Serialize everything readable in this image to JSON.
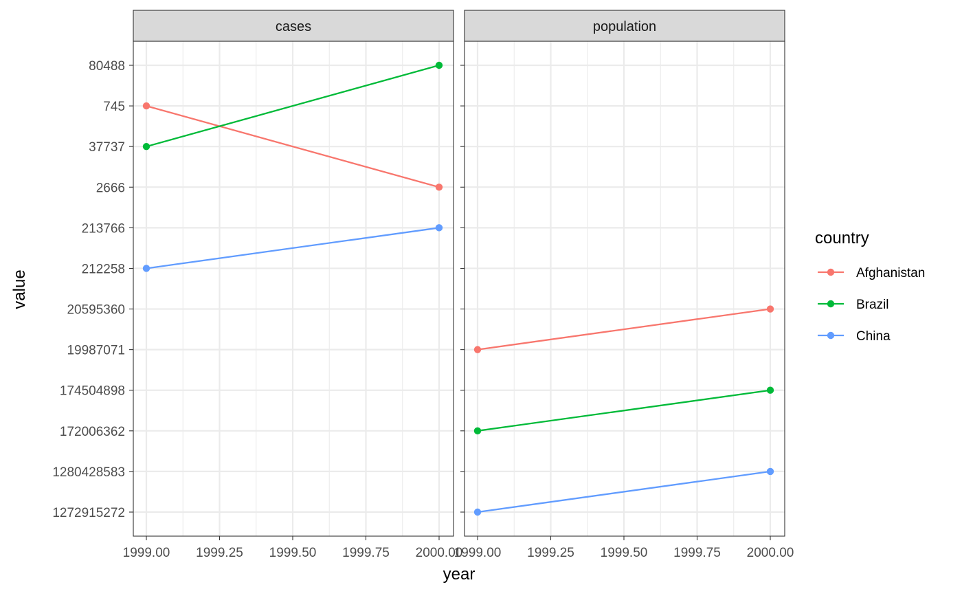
{
  "chart_data": {
    "type": "line",
    "xlabel": "year",
    "ylabel": "value",
    "y_scale": "discrete",
    "y_categories": [
      "1272915272",
      "1280428583",
      "172006362",
      "174504898",
      "19987071",
      "20595360",
      "212258",
      "213766",
      "2666",
      "37737",
      "745",
      "80488"
    ],
    "x_ticks": [
      "1999.00",
      "1999.25",
      "1999.50",
      "1999.75",
      "2000.00"
    ],
    "xlim": [
      1999,
      2000
    ],
    "grid": true,
    "legend": {
      "title": "country",
      "position": "right",
      "entries": [
        {
          "name": "Afghanistan",
          "color": "#F8766D"
        },
        {
          "name": "Brazil",
          "color": "#00BA38"
        },
        {
          "name": "China",
          "color": "#619CFF"
        }
      ]
    },
    "facets": [
      {
        "label": "cases",
        "series": [
          {
            "name": "Afghanistan",
            "points": [
              {
                "x": 1999,
                "y": "745"
              },
              {
                "x": 2000,
                "y": "2666"
              }
            ]
          },
          {
            "name": "Brazil",
            "points": [
              {
                "x": 1999,
                "y": "37737"
              },
              {
                "x": 2000,
                "y": "80488"
              }
            ]
          },
          {
            "name": "China",
            "points": [
              {
                "x": 1999,
                "y": "212258"
              },
              {
                "x": 2000,
                "y": "213766"
              }
            ]
          }
        ]
      },
      {
        "label": "population",
        "series": [
          {
            "name": "Afghanistan",
            "points": [
              {
                "x": 1999,
                "y": "19987071"
              },
              {
                "x": 2000,
                "y": "20595360"
              }
            ]
          },
          {
            "name": "Brazil",
            "points": [
              {
                "x": 1999,
                "y": "172006362"
              },
              {
                "x": 2000,
                "y": "174504898"
              }
            ]
          },
          {
            "name": "China",
            "points": [
              {
                "x": 1999,
                "y": "1272915272"
              },
              {
                "x": 2000,
                "y": "1280428583"
              }
            ]
          }
        ]
      }
    ]
  }
}
